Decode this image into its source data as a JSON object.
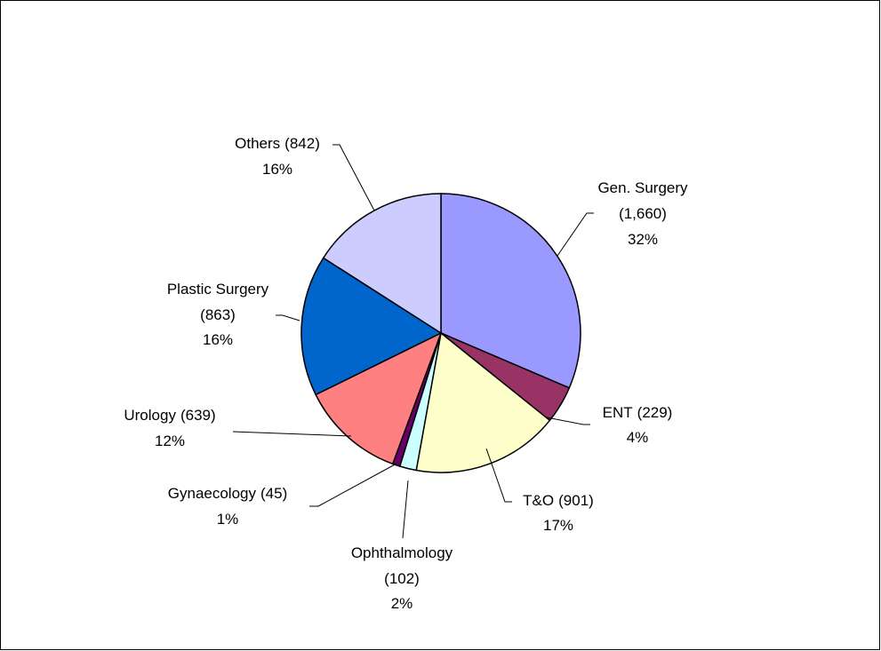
{
  "chart_data": {
    "type": "pie",
    "categories": [
      "Gen. Surgery",
      "ENT",
      "T&O",
      "Ophthalmology",
      "Gynaecology",
      "Urology",
      "Plastic Surgery",
      "Others"
    ],
    "values": [
      1660,
      229,
      901,
      102,
      45,
      639,
      863,
      842
    ],
    "value_labels": [
      "(1,660)",
      "(229)",
      "(901)",
      "(102)",
      "(45)",
      "(639)",
      "(863)",
      "(842)"
    ],
    "percent_labels": [
      "32%",
      "4%",
      "17%",
      "2%",
      "1%",
      "12%",
      "16%",
      "16%"
    ],
    "colors": [
      "#9999ff",
      "#993366",
      "#ffffcc",
      "#ccffff",
      "#660066",
      "#ff8080",
      "#0066cc",
      "#ccccff"
    ]
  }
}
